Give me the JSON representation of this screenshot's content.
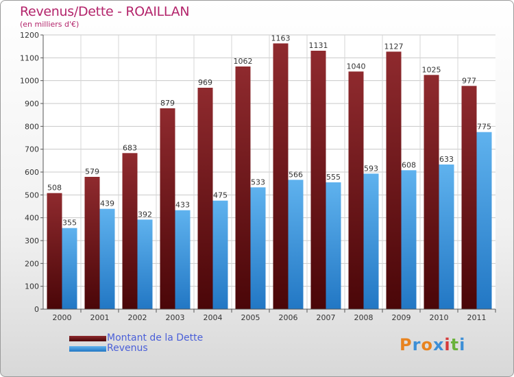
{
  "header": {
    "title": "Revenus/Dette - ROAILLAN",
    "subtitle": "(en milliers d'€)"
  },
  "chart_data": {
    "type": "bar",
    "categories": [
      "2000",
      "2001",
      "2002",
      "2003",
      "2004",
      "2005",
      "2006",
      "2007",
      "2008",
      "2009",
      "2010",
      "2011"
    ],
    "series": [
      {
        "name": "Montant de la Dette",
        "values": [
          508,
          579,
          683,
          879,
          969,
          1062,
          1163,
          1131,
          1040,
          1127,
          1025,
          977
        ],
        "color": "#7a1a1f"
      },
      {
        "name": "Revenus",
        "values": [
          355,
          439,
          392,
          433,
          475,
          533,
          566,
          555,
          593,
          608,
          633,
          775
        ],
        "color": "#3d9ae0"
      }
    ],
    "ylim": [
      0,
      1200
    ],
    "yticks": [
      0,
      100,
      200,
      300,
      400,
      500,
      600,
      700,
      800,
      900,
      1000,
      1100,
      1200
    ],
    "grid": true,
    "legend_position": "bottom-left"
  },
  "logo": {
    "text": "Proxiti",
    "colors": [
      "#e8831f",
      "#3d8fd6",
      "#e8831f",
      "#3d8fd6",
      "#d63a3a",
      "#6ab23b",
      "#3d8fd6"
    ]
  }
}
